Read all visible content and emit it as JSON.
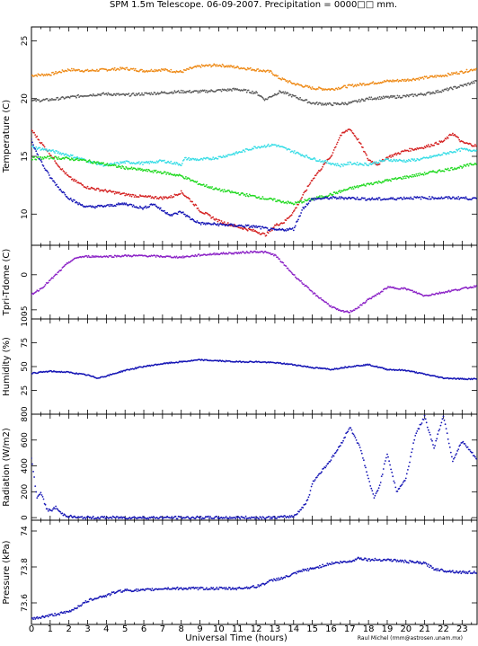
{
  "title": "SPM 1.5m Telescope. 06-09-2007. Precipitation = 0000□□ mm.",
  "credit": "Raul Michel (rmm@astrosen.unam.mx)",
  "chart_data": [
    {
      "type": "line",
      "ylabel": "Temperature (C)",
      "xlim": [
        0,
        23.8
      ],
      "ylim": [
        7.3,
        26.2
      ],
      "yticks": [
        10,
        15,
        20,
        25
      ],
      "grid": false,
      "series": [
        {
          "color": "#ee8a17",
          "x": [
            0,
            1,
            2,
            3,
            4,
            5,
            6,
            7,
            8,
            8.5,
            9,
            10,
            11,
            12,
            12.8,
            13.2,
            14,
            15,
            16,
            17,
            18,
            19,
            20,
            21,
            22,
            23,
            23.8
          ],
          "y": [
            22.0,
            22.1,
            22.5,
            22.4,
            22.5,
            22.6,
            22.4,
            22.5,
            22.3,
            22.6,
            22.8,
            22.9,
            22.7,
            22.5,
            22.3,
            21.8,
            21.3,
            20.9,
            20.8,
            21.1,
            21.3,
            21.5,
            21.6,
            21.8,
            22.0,
            22.3,
            22.6
          ]
        },
        {
          "color": "#5a5a5a",
          "x": [
            0,
            1,
            2,
            3,
            4,
            5,
            6,
            7,
            8,
            9,
            10,
            11,
            12,
            12.5,
            12.8,
            13.3,
            14,
            15,
            16,
            17,
            18,
            19,
            20,
            21,
            22,
            23,
            23.8
          ],
          "y": [
            19.8,
            19.9,
            20.1,
            20.3,
            20.4,
            20.3,
            20.4,
            20.5,
            20.6,
            20.6,
            20.7,
            20.8,
            20.5,
            19.9,
            20.2,
            20.6,
            20.2,
            19.6,
            19.5,
            19.6,
            20.0,
            20.1,
            20.2,
            20.4,
            20.7,
            21.1,
            21.5
          ]
        },
        {
          "color": "#d42121",
          "x": [
            0,
            0.5,
            1,
            1.5,
            2,
            2.5,
            3,
            4,
            5,
            6,
            7,
            7.5,
            8,
            8.5,
            9,
            10,
            11,
            12,
            12.5,
            12.8,
            13,
            13.3,
            13.5,
            14,
            15,
            16,
            16.5,
            17,
            17.5,
            18,
            18.5,
            19,
            20,
            21,
            22,
            22.5,
            23,
            23.8
          ],
          "y": [
            17.3,
            16.2,
            15.2,
            14.1,
            13.2,
            12.7,
            12.3,
            12.0,
            11.7,
            11.5,
            11.4,
            11.5,
            11.9,
            11.2,
            10.3,
            9.4,
            8.9,
            8.5,
            8.2,
            8.6,
            9.0,
            9.2,
            9.3,
            10.2,
            13.0,
            15.0,
            16.8,
            17.4,
            16.3,
            14.7,
            14.3,
            14.9,
            15.5,
            15.8,
            16.3,
            17.0,
            16.2,
            15.9
          ]
        },
        {
          "color": "#39dde6",
          "x": [
            0,
            1,
            2,
            3,
            4,
            5,
            6,
            7,
            8,
            8.2,
            9,
            10,
            11,
            12,
            13,
            14,
            15,
            16,
            16.5,
            17,
            18,
            19,
            20,
            21,
            22,
            23,
            23.8
          ],
          "y": [
            15.8,
            15.5,
            15.1,
            14.6,
            14.2,
            14.5,
            14.4,
            14.6,
            14.3,
            14.8,
            14.7,
            14.9,
            15.3,
            15.8,
            16.0,
            15.4,
            14.8,
            14.4,
            14.2,
            14.4,
            14.3,
            14.7,
            14.6,
            14.8,
            15.2,
            15.6,
            15.5
          ]
        },
        {
          "color": "#21d921",
          "x": [
            0,
            1,
            2,
            3,
            4,
            5,
            6,
            7,
            8,
            9,
            10,
            11,
            12,
            13,
            14,
            15,
            16,
            17,
            18,
            19,
            20,
            21,
            22,
            23,
            23.8
          ],
          "y": [
            14.8,
            14.9,
            14.8,
            14.6,
            14.3,
            14.0,
            13.8,
            13.6,
            13.3,
            12.6,
            12.1,
            11.8,
            11.5,
            11.2,
            10.9,
            11.3,
            11.7,
            12.2,
            12.6,
            12.9,
            13.2,
            13.5,
            13.8,
            14.1,
            14.4
          ]
        },
        {
          "color": "#1515b5",
          "x": [
            0,
            0.3,
            0.7,
            1,
            1.5,
            2,
            2.5,
            3,
            4,
            5,
            6,
            6.5,
            7,
            7.5,
            8,
            8.5,
            9,
            10,
            11,
            12,
            13,
            14,
            14.5,
            15,
            16,
            17,
            18,
            19,
            20,
            21,
            22,
            23,
            23.8
          ],
          "y": [
            16.5,
            15.2,
            14.0,
            13.2,
            12.2,
            11.4,
            10.9,
            10.6,
            10.7,
            10.9,
            10.5,
            10.9,
            10.3,
            9.9,
            10.2,
            9.6,
            9.2,
            9.1,
            9.0,
            8.9,
            8.6,
            8.7,
            10.5,
            11.3,
            11.4,
            11.4,
            11.3,
            11.3,
            11.4,
            11.4,
            11.4,
            11.4,
            11.3
          ]
        }
      ]
    },
    {
      "type": "scatter",
      "ylabel": "Tpri-Tdome (C)",
      "xlim": [
        0,
        23.8
      ],
      "ylim": [
        -6.3,
        4.2
      ],
      "yticks": [
        -5,
        0
      ],
      "series": [
        {
          "color": "#8b22c6",
          "x": [
            0,
            0.5,
            1,
            1.5,
            2,
            2.5,
            3,
            4,
            5,
            6,
            7,
            8,
            9,
            10,
            11,
            12,
            12.5,
            13,
            13.3,
            14,
            15,
            16,
            16.5,
            17,
            17.5,
            18,
            18.5,
            19,
            20,
            21,
            22,
            23,
            23.8
          ],
          "y": [
            -2.8,
            -2.0,
            -0.8,
            0.5,
            1.8,
            2.5,
            2.6,
            2.6,
            2.7,
            2.7,
            2.6,
            2.5,
            2.8,
            3.0,
            3.1,
            3.3,
            3.2,
            2.8,
            2.0,
            0.0,
            -2.5,
            -4.5,
            -5.2,
            -5.3,
            -4.6,
            -3.5,
            -2.8,
            -1.8,
            -2.0,
            -3.0,
            -2.5,
            -2.0,
            -1.6
          ]
        }
      ]
    },
    {
      "type": "line",
      "ylabel": "Humidity (%)",
      "xlim": [
        0,
        23.8
      ],
      "ylim": [
        0,
        100
      ],
      "yticks": [
        25,
        50,
        75,
        100
      ],
      "series": [
        {
          "color": "#1515b5",
          "x": [
            0,
            1,
            2,
            3,
            3.5,
            4,
            5,
            6,
            7,
            8,
            9,
            10,
            11,
            12,
            13,
            14,
            15,
            16,
            17,
            18,
            19,
            20,
            21,
            22,
            23,
            23.8
          ],
          "y": [
            43,
            45,
            44,
            41,
            38,
            40,
            46,
            50,
            53,
            55,
            57,
            56,
            55,
            55,
            54,
            52,
            49,
            47,
            50,
            52,
            47,
            46,
            42,
            38,
            37,
            37
          ]
        }
      ]
    },
    {
      "type": "scatter",
      "ylabel": "Radiation (W/m2)",
      "xlim": [
        0,
        23.8
      ],
      "ylim": [
        -20,
        800
      ],
      "yticks": [
        0,
        200,
        400,
        600,
        800
      ],
      "series": [
        {
          "color": "#1515b5",
          "x": [
            0,
            0.3,
            0.5,
            0.8,
            1.0,
            1.3,
            1.6,
            2.0,
            2.5,
            3,
            5,
            8,
            11,
            13,
            14,
            14.5,
            14.8,
            15,
            16,
            16.5,
            17,
            17.3,
            17.6,
            18,
            18.3,
            18.6,
            19,
            19.5,
            20,
            20.5,
            21,
            21.5,
            22,
            22.5,
            23,
            23.8
          ],
          "y": [
            460,
            150,
            200,
            70,
            50,
            80,
            30,
            10,
            0,
            0,
            0,
            0,
            0,
            0,
            10,
            80,
            150,
            270,
            450,
            560,
            700,
            620,
            520,
            300,
            150,
            250,
            500,
            200,
            300,
            640,
            780,
            540,
            790,
            440,
            590,
            450
          ]
        }
      ]
    },
    {
      "type": "scatter",
      "ylabel": "Pressure (kPa)",
      "xlim": [
        0,
        23.8
      ],
      "ylim": [
        73.48,
        74.06
      ],
      "yticks": [
        73.6,
        73.8,
        74
      ],
      "series": [
        {
          "color": "#1515b5",
          "x": [
            0,
            0.5,
            1,
            1.5,
            2,
            2.5,
            3,
            3.5,
            4,
            4.5,
            5,
            6,
            7,
            8,
            9,
            10,
            11,
            12,
            12.5,
            13,
            13.5,
            14,
            14.5,
            15,
            16,
            17,
            17.5,
            18,
            19,
            20,
            21,
            21.5,
            22,
            23,
            23.8
          ],
          "y": [
            73.51,
            73.52,
            73.53,
            73.54,
            73.55,
            73.58,
            73.61,
            73.63,
            73.64,
            73.66,
            73.67,
            73.67,
            73.68,
            73.68,
            73.68,
            73.68,
            73.68,
            73.69,
            73.71,
            73.73,
            73.74,
            73.76,
            73.78,
            73.79,
            73.82,
            73.83,
            73.85,
            73.84,
            73.84,
            73.83,
            73.82,
            73.79,
            73.78,
            73.77,
            73.77
          ]
        }
      ]
    }
  ],
  "xaxis": {
    "label": "Universal Time (hours)",
    "ticks": [
      0,
      1,
      2,
      3,
      4,
      5,
      6,
      7,
      8,
      9,
      10,
      11,
      12,
      13,
      14,
      15,
      16,
      17,
      18,
      19,
      20,
      21,
      22,
      23
    ],
    "xlim": [
      0,
      23.8
    ]
  }
}
